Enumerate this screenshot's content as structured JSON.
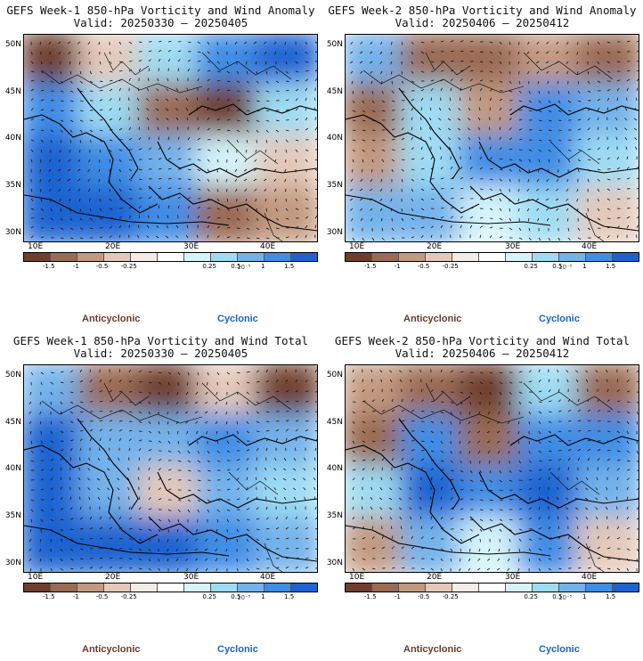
{
  "panels": [
    {
      "id": "p1",
      "title": "GEFS Week-1 850-hPa Vorticity and Wind Anomaly",
      "valid": "Valid: 20250330 – 20250405",
      "fields": [
        [
          -1.6,
          -0.4,
          0.3,
          1.2,
          1.8
        ],
        [
          1.5,
          0.4,
          -1.2,
          -1.6,
          0.3
        ],
        [
          1.8,
          1.2,
          0.6,
          0.2,
          -0.4
        ],
        [
          1.6,
          2.0,
          1.4,
          -1.0,
          -0.6
        ]
      ]
    },
    {
      "id": "p2",
      "title": "GEFS Week-2 850-hPa Vorticity and Wind Anomaly",
      "valid": "Valid: 20250406 – 20250412",
      "fields": [
        [
          0.6,
          -1.2,
          -1.4,
          -0.5,
          -1.0
        ],
        [
          -1.0,
          0.5,
          -0.8,
          1.4,
          0.6
        ],
        [
          -0.6,
          0.4,
          1.2,
          1.5,
          0.4
        ],
        [
          0.8,
          1.0,
          0.2,
          0.3,
          -0.4
        ]
      ]
    },
    {
      "id": "p3",
      "title": "GEFS Week-1 850-hPa Vorticity and Wind Total",
      "valid": "Valid: 20250330 – 20250405",
      "fields": [
        [
          0.8,
          -1.4,
          -1.6,
          -0.4,
          -1.5
        ],
        [
          1.6,
          1.0,
          0.6,
          1.2,
          0.8
        ],
        [
          1.6,
          0.6,
          -0.4,
          1.0,
          0.3
        ],
        [
          1.7,
          1.9,
          1.6,
          1.4,
          1.0
        ]
      ]
    },
    {
      "id": "p4",
      "title": "GEFS Week-2 850-hPa Vorticity and Wind Total",
      "valid": "Valid: 20250406 – 20250412",
      "fields": [
        [
          -0.6,
          -1.2,
          -1.6,
          0.3,
          -1.4
        ],
        [
          -1.0,
          1.2,
          -1.0,
          1.4,
          1.2
        ],
        [
          0.4,
          1.6,
          1.3,
          1.8,
          0.6
        ],
        [
          -0.6,
          1.0,
          0.2,
          1.5,
          -0.4
        ]
      ]
    }
  ],
  "axes": {
    "lat_labels": [
      "50N",
      "45N",
      "40N",
      "35N",
      "30N"
    ],
    "lon_labels": [
      "10E",
      "20E",
      "30E",
      "40E"
    ]
  },
  "colorbar": {
    "labels": [
      "-1.5",
      "-1",
      "-0.5",
      "-0.25",
      "0.25",
      "0.5",
      "1",
      "1.5"
    ],
    "colors": [
      "#6f3f2d",
      "#9a6b52",
      "#c29a81",
      "#e4c9ba",
      "#f5ece6",
      "#ffffff",
      "#d6f4fb",
      "#9fdcf3",
      "#74b2ea",
      "#3f8de5",
      "#1e63d0"
    ],
    "unit": "10⁻⁵"
  },
  "legend": {
    "anticyclonic": "Anticyclonic",
    "cyclonic": "Cyclonic"
  }
}
